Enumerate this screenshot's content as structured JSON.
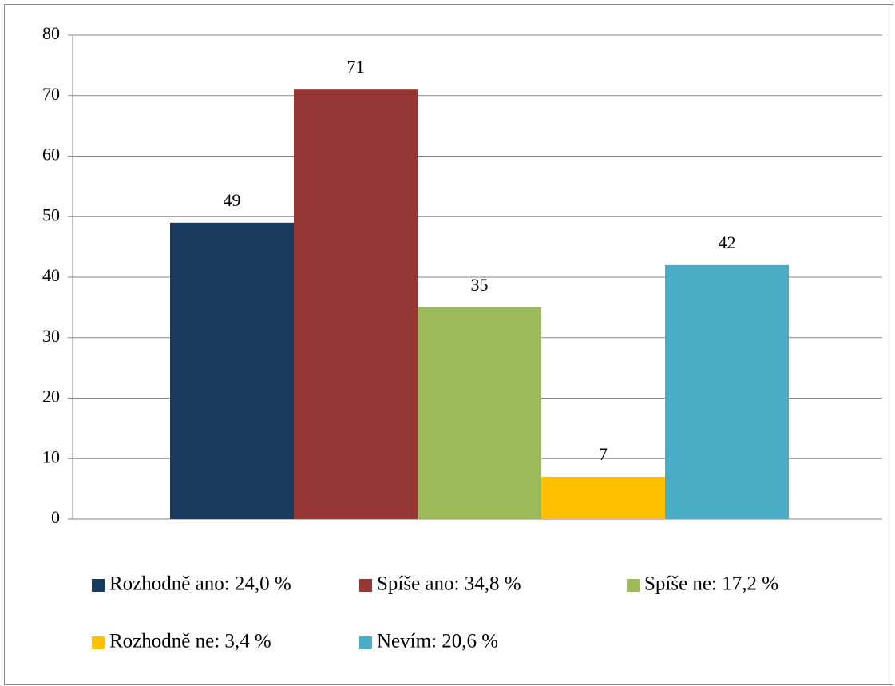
{
  "chart_data": {
    "type": "bar",
    "categories": [
      null
    ],
    "series": [
      {
        "name": "Rozhodně ano: 24,0 %",
        "color": "#1a3a5e",
        "values": [
          49
        ]
      },
      {
        "name": "Spíše ano: 34,8 %",
        "color": "#953735",
        "values": [
          71
        ]
      },
      {
        "name": "Spíše ne: 17,2 %",
        "color": "#9bbb59",
        "values": [
          35
        ]
      },
      {
        "name": "Rozhodně ne: 3,4 %",
        "color": "#ffc000",
        "values": [
          7
        ]
      },
      {
        "name": "Nevím: 20,6 %",
        "color": "#4bacc6",
        "values": [
          42
        ]
      }
    ],
    "ylim": [
      0,
      80
    ],
    "yticks": [
      0,
      10,
      20,
      30,
      40,
      50,
      60,
      70,
      80
    ],
    "grid": true,
    "legend": "bottom"
  }
}
